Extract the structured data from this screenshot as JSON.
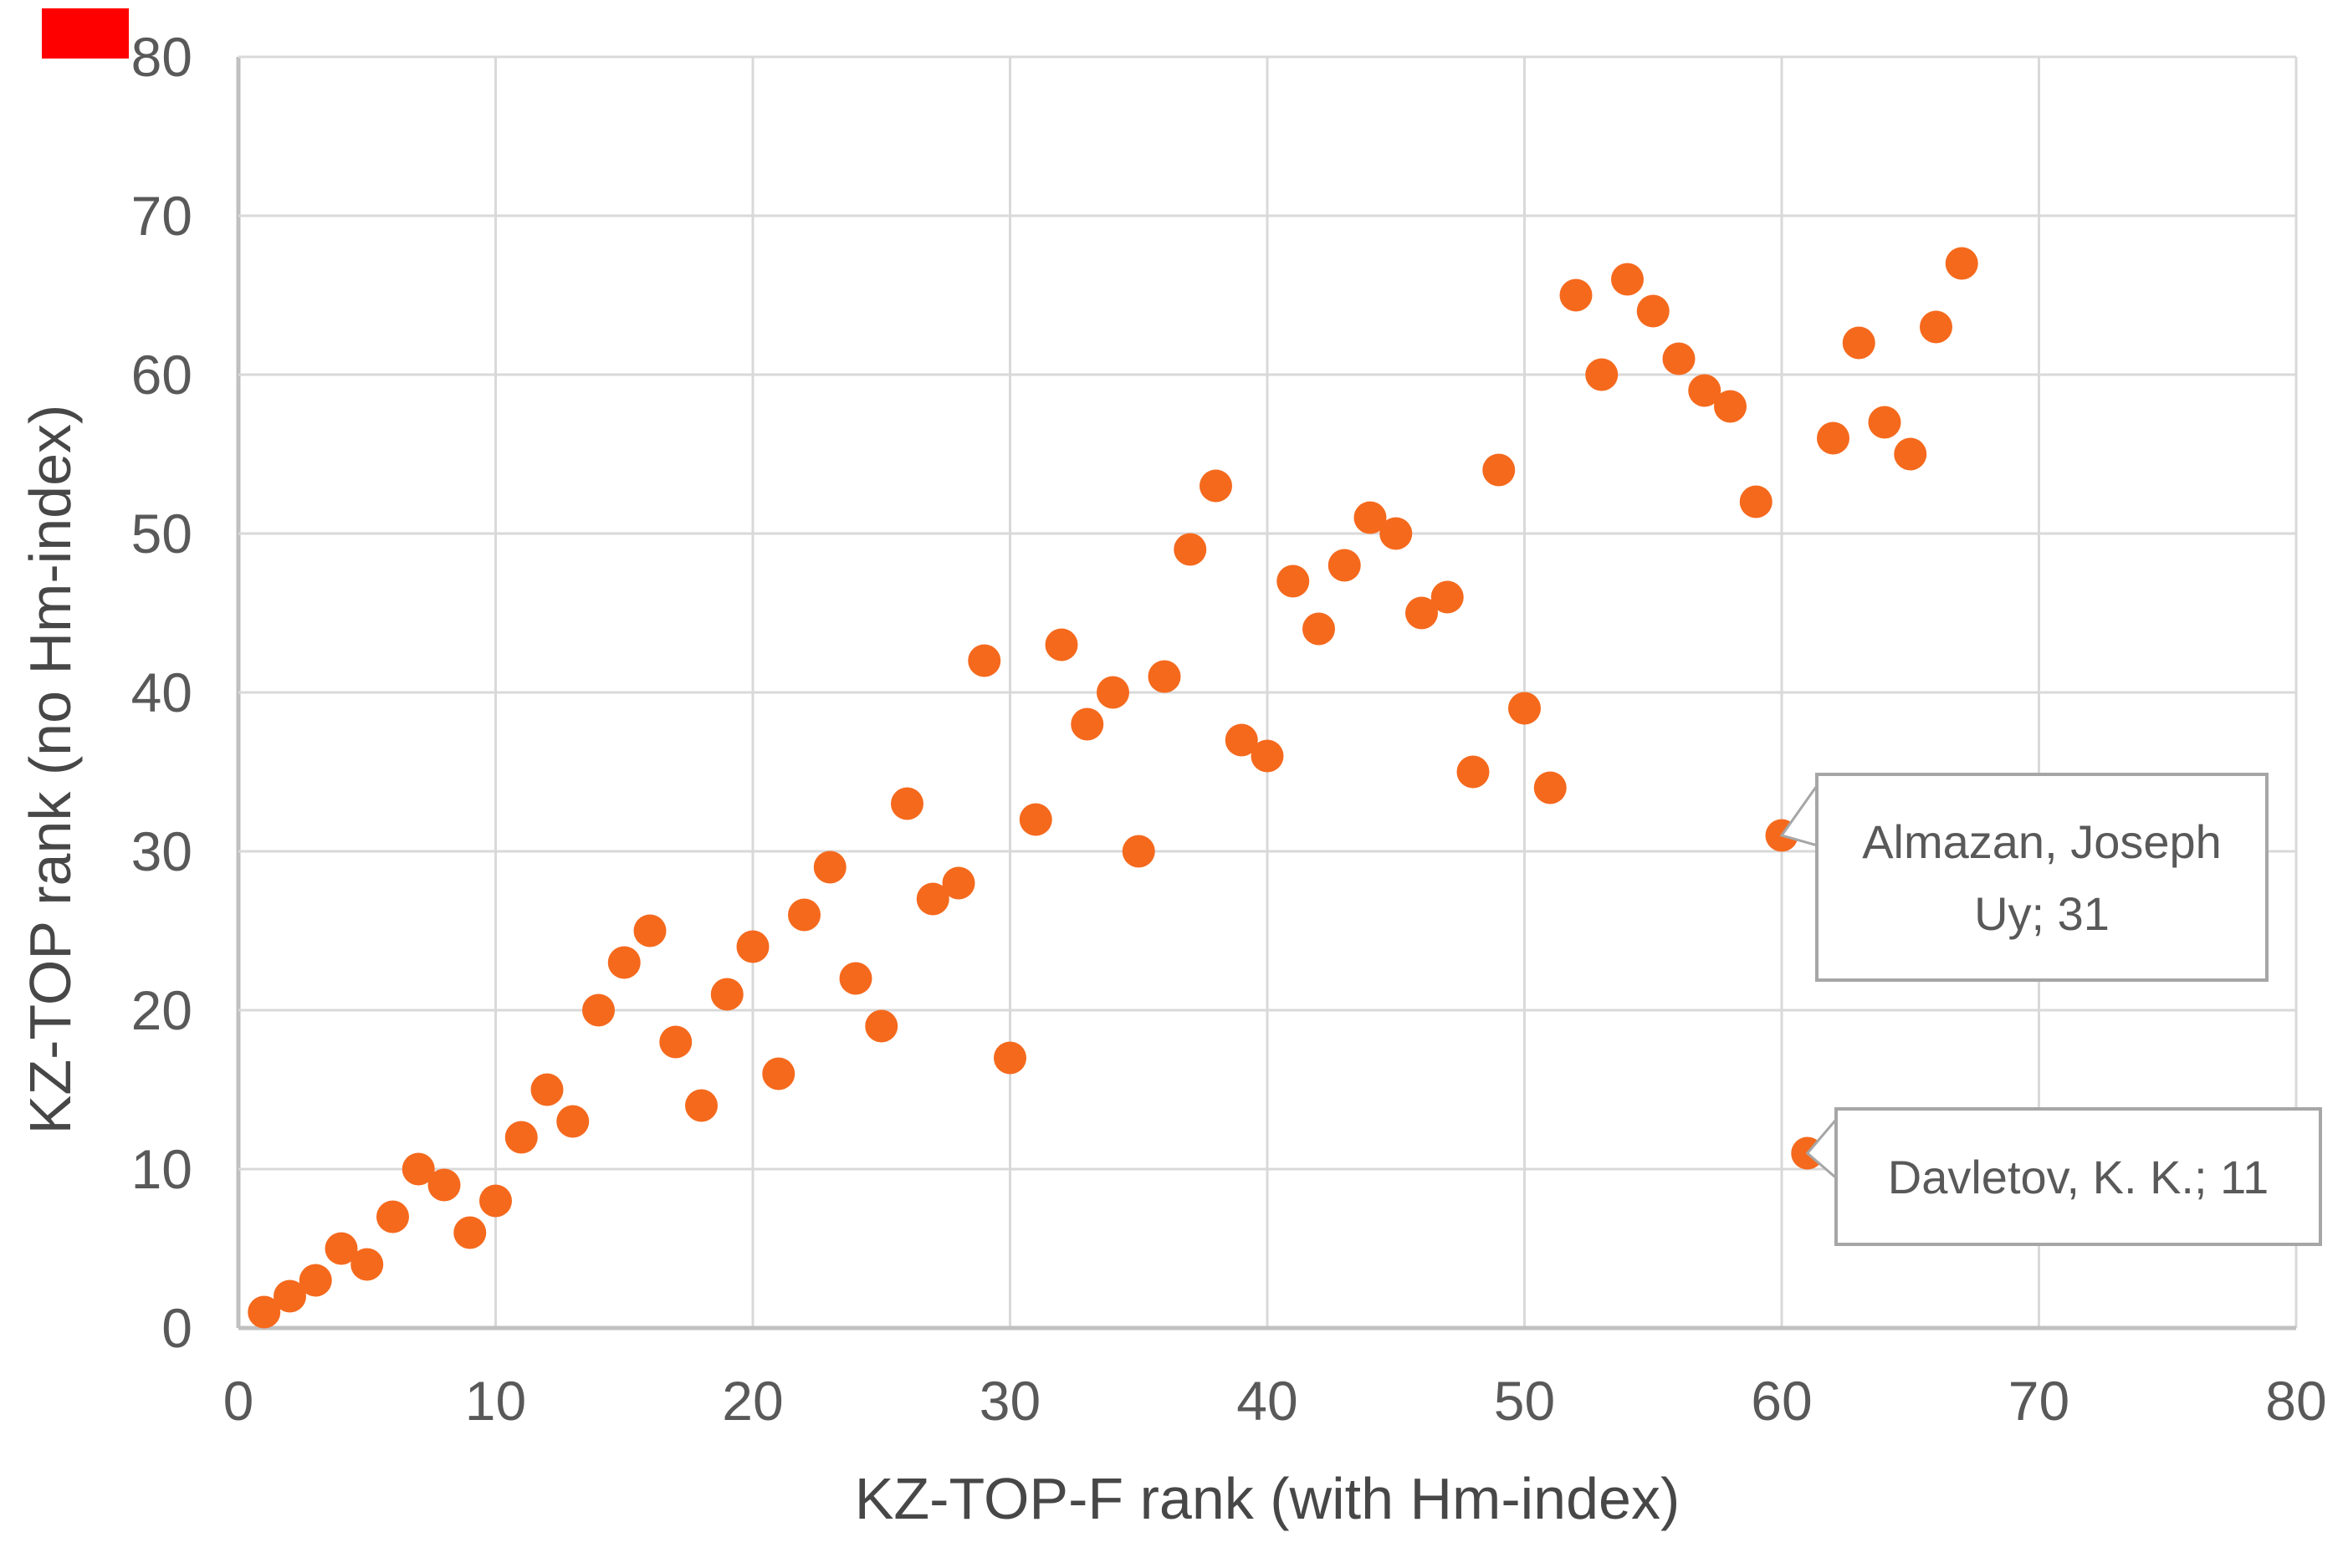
{
  "chart_data": {
    "type": "scatter",
    "title": "",
    "xlabel": "KZ-TOP-F rank (with Hm-index)",
    "ylabel": "KZ-TOP rank (no Hm-index)",
    "xlim": [
      0,
      80
    ],
    "ylim": [
      0,
      80
    ],
    "x_ticks": [
      0,
      10,
      20,
      30,
      40,
      50,
      60,
      70,
      80
    ],
    "y_ticks": [
      0,
      10,
      20,
      30,
      40,
      50,
      60,
      70,
      80
    ],
    "grid": true,
    "legend": "none",
    "marker_color": "#F5691D",
    "points": [
      [
        1,
        1
      ],
      [
        2,
        2
      ],
      [
        3,
        3
      ],
      [
        4,
        5
      ],
      [
        5,
        4
      ],
      [
        6,
        7
      ],
      [
        7,
        10
      ],
      [
        8,
        9
      ],
      [
        9,
        6
      ],
      [
        10,
        8
      ],
      [
        11,
        12
      ],
      [
        12,
        15
      ],
      [
        13,
        13
      ],
      [
        14,
        20
      ],
      [
        15,
        23
      ],
      [
        16,
        25
      ],
      [
        17,
        18
      ],
      [
        18,
        14
      ],
      [
        19,
        21
      ],
      [
        20,
        24
      ],
      [
        21,
        16
      ],
      [
        22,
        26
      ],
      [
        23,
        29
      ],
      [
        24,
        22
      ],
      [
        25,
        19
      ],
      [
        26,
        33
      ],
      [
        27,
        27
      ],
      [
        28,
        28
      ],
      [
        29,
        42
      ],
      [
        30,
        17
      ],
      [
        31,
        32
      ],
      [
        32,
        43
      ],
      [
        33,
        38
      ],
      [
        34,
        40
      ],
      [
        35,
        30
      ],
      [
        36,
        41
      ],
      [
        37,
        49
      ],
      [
        38,
        53
      ],
      [
        39,
        37
      ],
      [
        40,
        36
      ],
      [
        41,
        47
      ],
      [
        42,
        44
      ],
      [
        43,
        48
      ],
      [
        44,
        51
      ],
      [
        45,
        50
      ],
      [
        46,
        45
      ],
      [
        47,
        46
      ],
      [
        48,
        35
      ],
      [
        49,
        54
      ],
      [
        50,
        39
      ],
      [
        51,
        34
      ],
      [
        52,
        65
      ],
      [
        53,
        60
      ],
      [
        54,
        66
      ],
      [
        55,
        64
      ],
      [
        56,
        61
      ],
      [
        57,
        59
      ],
      [
        58,
        58
      ],
      [
        59,
        52
      ],
      [
        60,
        31
      ],
      [
        61,
        11
      ],
      [
        62,
        56
      ],
      [
        63,
        62
      ],
      [
        64,
        57
      ],
      [
        65,
        55
      ],
      [
        66,
        63
      ],
      [
        67,
        67
      ]
    ],
    "annotations": [
      {
        "x": 60,
        "y": 31,
        "lines": [
          "Almazan, Joseph",
          "Uy; 31"
        ]
      },
      {
        "x": 61,
        "y": 11,
        "lines": [
          "Davletov, K. K.; 11"
        ]
      }
    ]
  },
  "colors": {
    "marker": "#F5691D",
    "grid": "#D9D9D9",
    "axis": "#C0C0C0",
    "tick_text": "#595959",
    "title_text": "#474747",
    "callout_border": "#A6A6A6",
    "callout_fill": "#FFFFFF",
    "callout_text": "#595959",
    "corner_marker": "#FF0000"
  }
}
